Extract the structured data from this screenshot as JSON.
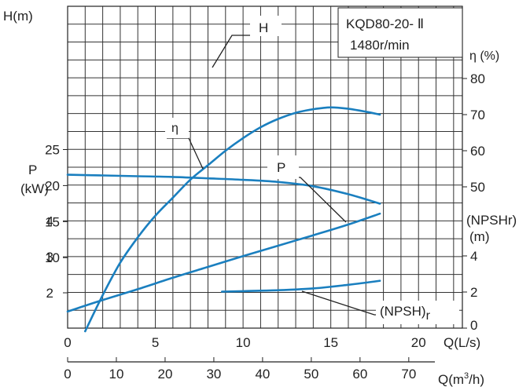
{
  "chart_data": {
    "type": "line",
    "model": "KQD80-20- Ⅱ",
    "speed": "1480r/min",
    "grid": true,
    "x_axis_primary": {
      "label": "Q(L/s)",
      "range": [
        0,
        22.5
      ],
      "ticks": [
        0,
        5,
        10,
        15,
        20
      ]
    },
    "x_axis_secondary": {
      "label_main": "Q(m",
      "label_sup": "3",
      "label_end": "/h)",
      "ticks": [
        0,
        10,
        20,
        30,
        40,
        50,
        60,
        70
      ]
    },
    "left_axis_head": {
      "label": "H(m)",
      "range": [
        0,
        25
      ],
      "ticks": [
        10,
        15,
        20,
        25
      ]
    },
    "left_axis_power": {
      "label_line1": "P",
      "label_line2": "(kW)",
      "range": [
        1,
        4
      ],
      "ticks": [
        2,
        3,
        4
      ]
    },
    "right_axis_efficiency": {
      "label": "η  (%)",
      "range": [
        50,
        80
      ],
      "ticks": [
        50,
        60,
        70,
        80
      ]
    },
    "right_axis_npsh": {
      "label_line1": "(NPSHr)",
      "label_line2": "(m)",
      "range": [
        0,
        4
      ],
      "ticks": [
        0,
        2,
        4
      ]
    },
    "series": [
      {
        "name": "H",
        "axis": "head",
        "color": "#1a7fbf",
        "x": [
          0,
          2,
          4,
          6,
          8,
          10,
          12,
          14,
          16,
          17.8
        ],
        "y": [
          21.5,
          21.4,
          21.3,
          21.2,
          21.0,
          20.8,
          20.5,
          19.9,
          18.8,
          17.5
        ]
      },
      {
        "name": "η",
        "axis": "efficiency",
        "color": "#1a7fbf",
        "x": [
          1,
          2,
          3,
          4,
          5,
          6,
          7,
          8,
          9,
          10,
          11,
          12,
          13,
          14,
          15,
          16,
          17,
          17.8
        ],
        "y": [
          10,
          20,
          29,
          36,
          42,
          47,
          52,
          56,
          60,
          63.5,
          66.5,
          68.8,
          70.5,
          71.5,
          72,
          71.6,
          70.8,
          70
        ]
      },
      {
        "name": "P",
        "axis": "power",
        "color": "#1a7fbf",
        "x": [
          0,
          2,
          4,
          6,
          8,
          10,
          12,
          14,
          16,
          17.8
        ],
        "y": [
          1.48,
          1.8,
          2.1,
          2.42,
          2.72,
          3.02,
          3.31,
          3.6,
          3.9,
          4.2
        ]
      },
      {
        "name": "(NPSH)",
        "name_sub": "r",
        "axis": "npsh",
        "color": "#1a7fbf",
        "x": [
          8.8,
          10,
          12,
          14,
          16,
          17.8
        ],
        "y": [
          2.02,
          2.05,
          2.1,
          2.2,
          2.4,
          2.62
        ]
      }
    ]
  }
}
